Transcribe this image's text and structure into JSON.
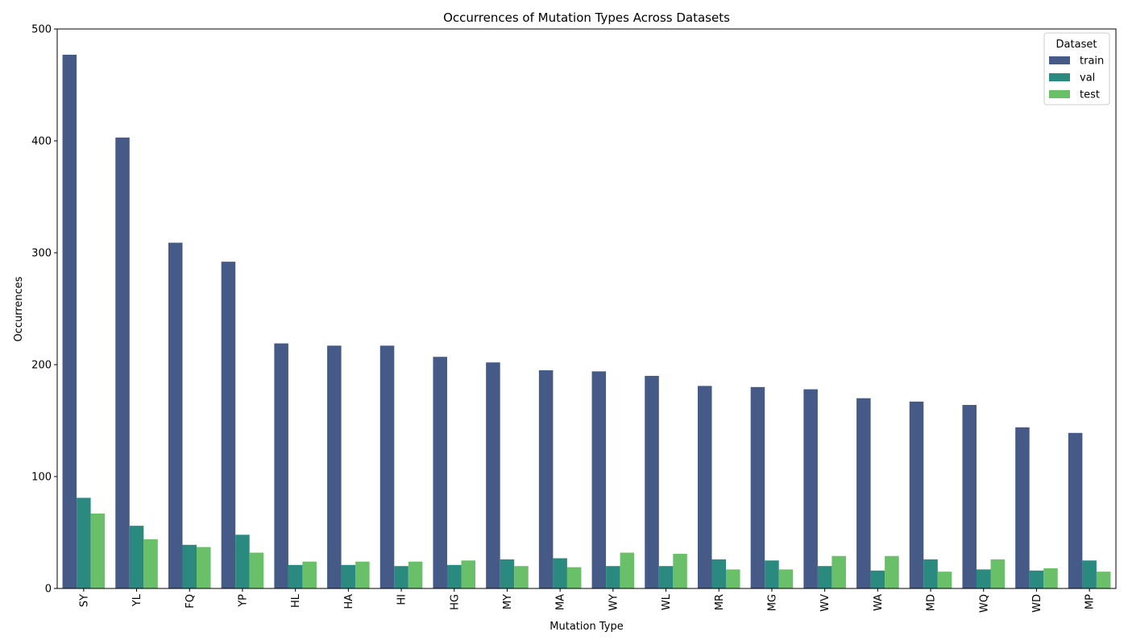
{
  "chart_data": {
    "type": "bar",
    "title": "Occurrences of Mutation Types Across Datasets",
    "xlabel": "Mutation Type",
    "ylabel": "Occurrences",
    "ylim": [
      0,
      500
    ],
    "yticks": [
      0,
      100,
      200,
      300,
      400,
      500
    ],
    "grid": false,
    "legend": {
      "title": "Dataset",
      "placement": "top-right"
    },
    "categories": [
      "SY",
      "YL",
      "FQ",
      "YP",
      "HL",
      "HA",
      "HI",
      "HG",
      "MY",
      "MA",
      "WY",
      "WL",
      "MR",
      "MG",
      "WV",
      "WA",
      "MD",
      "WQ",
      "WD",
      "MP"
    ],
    "series": [
      {
        "name": "train",
        "color": "#455a87",
        "values": [
          477,
          403,
          309,
          292,
          219,
          217,
          217,
          207,
          202,
          195,
          194,
          190,
          181,
          180,
          178,
          170,
          167,
          164,
          144,
          139
        ]
      },
      {
        "name": "val",
        "color": "#2a8a80",
        "values": [
          81,
          56,
          39,
          48,
          21,
          21,
          20,
          21,
          26,
          27,
          20,
          20,
          26,
          25,
          20,
          16,
          26,
          17,
          16,
          25
        ]
      },
      {
        "name": "test",
        "color": "#6abf69",
        "values": [
          67,
          44,
          37,
          32,
          24,
          24,
          24,
          25,
          20,
          19,
          32,
          31,
          17,
          17,
          29,
          29,
          15,
          26,
          18,
          15
        ]
      }
    ]
  }
}
